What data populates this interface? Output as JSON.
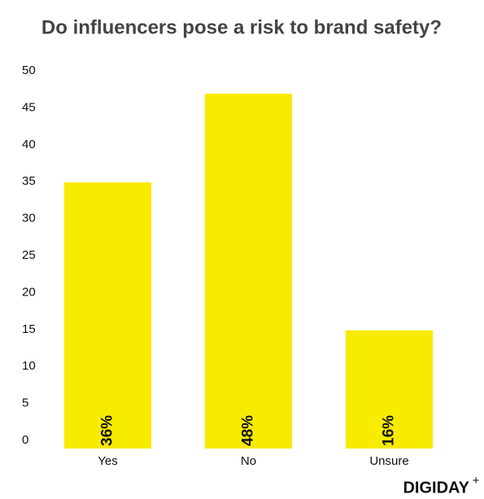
{
  "chart_data": {
    "type": "bar",
    "title": "Do influencers pose a risk to brand safety?",
    "categories": [
      "Yes",
      "No",
      "Unsure"
    ],
    "values": [
      36,
      48,
      16
    ],
    "value_labels": [
      "36%",
      "48%",
      "16%"
    ],
    "color": "#f7eb00",
    "ylim": [
      0,
      50
    ],
    "yticks": [
      0,
      5,
      10,
      15,
      20,
      25,
      30,
      35,
      40,
      45,
      50
    ],
    "grid": false
  },
  "brand": {
    "name": "DIGIDAY",
    "mark": "+"
  }
}
